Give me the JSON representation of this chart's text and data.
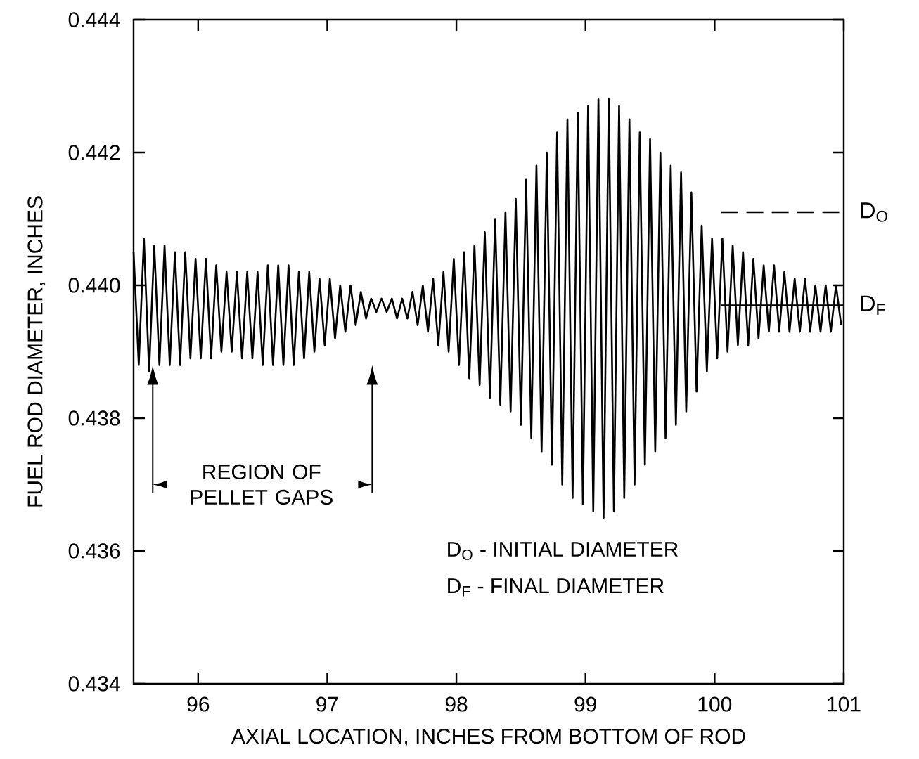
{
  "chart_data": {
    "type": "line",
    "xlabel": "AXIAL LOCATION, INCHES FROM BOTTOM OF ROD",
    "ylabel": "FUEL ROD DIAMETER, INCHES",
    "xlim": [
      95.5,
      101
    ],
    "xticks": [
      96,
      97,
      98,
      99,
      100,
      101
    ],
    "ylim": [
      0.434,
      0.444
    ],
    "yticks": [
      0.434,
      0.436,
      0.438,
      {
        "value": 0.44,
        "label": "0.440"
      },
      0.442,
      0.444
    ],
    "annotations": [
      "REGION OF PELLET GAPS",
      "D$_{O}$ - INITIAL DIAMETER",
      "D$_{F}$ - FINAL DIAMETER"
    ],
    "series": [
      {
        "color": "#000000",
        "line_style": "solid",
        "x": [
          95.5,
          95.54,
          95.58,
          95.62,
          95.66,
          95.7,
          95.74,
          95.78,
          95.82,
          95.86,
          95.9,
          95.94,
          95.98,
          96.02,
          96.06,
          96.1,
          96.14,
          96.18,
          96.22,
          96.26,
          96.3,
          96.34,
          96.38,
          96.42,
          96.46,
          96.5,
          96.54,
          96.58,
          96.62,
          96.66,
          96.7,
          96.74,
          96.78,
          96.82,
          96.86,
          96.9,
          96.94,
          96.98,
          97.02,
          97.06,
          97.1,
          97.14,
          97.18,
          97.22,
          97.26,
          97.3,
          97.34,
          97.38,
          97.42,
          97.46,
          97.5,
          97.54,
          97.58,
          97.62,
          97.66,
          97.7,
          97.74,
          97.78,
          97.82,
          97.86,
          97.9,
          97.94,
          97.98,
          98.02,
          98.06,
          98.1,
          98.14,
          98.18,
          98.22,
          98.26,
          98.3,
          98.34,
          98.38,
          98.42,
          98.46,
          98.5,
          98.54,
          98.58,
          98.62,
          98.66,
          98.7,
          98.74,
          98.78,
          98.82,
          98.86,
          98.9,
          98.94,
          98.98,
          99.02,
          99.06,
          99.1,
          99.14,
          99.18,
          99.22,
          99.26,
          99.3,
          99.34,
          99.38,
          99.42,
          99.46,
          99.5,
          99.54,
          99.58,
          99.62,
          99.66,
          99.7,
          99.74,
          99.78,
          99.82,
          99.86,
          99.9,
          99.94,
          99.98,
          100.02,
          100.06,
          100.1,
          100.14,
          100.18,
          100.22,
          100.26,
          100.3,
          100.34,
          100.38,
          100.42,
          100.46,
          100.5,
          100.54,
          100.58,
          100.62,
          100.66,
          100.7,
          100.74,
          100.78,
          100.82,
          100.86,
          100.9,
          100.94,
          100.98
        ],
        "values": [
          0.4405,
          0.4388,
          0.4407,
          0.4387,
          0.4406,
          0.4388,
          0.4406,
          0.4388,
          0.4405,
          0.4388,
          0.4405,
          0.4389,
          0.4404,
          0.4389,
          0.4404,
          0.4389,
          0.4403,
          0.439,
          0.4402,
          0.439,
          0.4402,
          0.4389,
          0.4402,
          0.4389,
          0.4402,
          0.4388,
          0.4403,
          0.4388,
          0.4403,
          0.4388,
          0.4403,
          0.4388,
          0.4402,
          0.4389,
          0.4402,
          0.439,
          0.4401,
          0.4391,
          0.4401,
          0.4392,
          0.44,
          0.4393,
          0.44,
          0.4394,
          0.4399,
          0.4395,
          0.4398,
          0.4396,
          0.4398,
          0.4396,
          0.4398,
          0.4395,
          0.4398,
          0.4395,
          0.4399,
          0.4394,
          0.44,
          0.4393,
          0.4401,
          0.4391,
          0.4402,
          0.439,
          0.4404,
          0.4388,
          0.4405,
          0.4386,
          0.4406,
          0.4385,
          0.4408,
          0.4383,
          0.441,
          0.4382,
          0.4411,
          0.4381,
          0.4413,
          0.4379,
          0.4416,
          0.4377,
          0.4418,
          0.4375,
          0.442,
          0.4373,
          0.4423,
          0.437,
          0.4425,
          0.4368,
          0.4426,
          0.4367,
          0.4427,
          0.4366,
          0.4428,
          0.4365,
          0.4428,
          0.4366,
          0.4427,
          0.4368,
          0.4425,
          0.437,
          0.4423,
          0.4373,
          0.4422,
          0.4375,
          0.442,
          0.4377,
          0.4418,
          0.4379,
          0.4417,
          0.4381,
          0.4414,
          0.4384,
          0.4409,
          0.4387,
          0.4407,
          0.4389,
          0.4407,
          0.439,
          0.4406,
          0.4391,
          0.4405,
          0.4391,
          0.4404,
          0.4392,
          0.4403,
          0.4393,
          0.4403,
          0.4393,
          0.4402,
          0.4393,
          0.4401,
          0.4393,
          0.4401,
          0.4393,
          0.44,
          0.4393,
          0.44,
          0.4393,
          0.44,
          0.4394
        ]
      },
      {
        "name": "D$_{O}$",
        "color": "#000000",
        "line_style": "dashed",
        "x": [
          100.05,
          101
        ],
        "values": [
          0.4411,
          0.4411
        ]
      },
      {
        "name": "D$_{F}$",
        "color": "#000000",
        "line_style": "solid",
        "x": [
          100.05,
          101
        ],
        "values": [
          0.4397,
          0.4397
        ]
      }
    ]
  }
}
